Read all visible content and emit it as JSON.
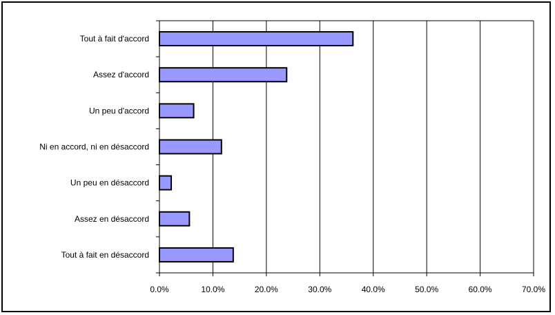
{
  "chart_data": {
    "type": "bar",
    "orientation": "horizontal",
    "categories": [
      "Tout à fait d'accord",
      "Assez d'accord",
      "Un peu d'accord",
      "Ni en accord, ni en désaccord",
      "Un peu en désaccord",
      "Assez en désaccord",
      "Tout à fait en désaccord"
    ],
    "values": [
      36.2,
      23.8,
      6.4,
      11.6,
      2.2,
      5.6,
      13.8
    ],
    "xlim": [
      0,
      70
    ],
    "x_ticks": [
      0,
      10,
      20,
      30,
      40,
      50,
      60,
      70
    ],
    "x_tick_labels": [
      "0.0%",
      "10.0%",
      "20.0%",
      "30.0%",
      "40.0%",
      "50.0%",
      "60.0%",
      "70.0%"
    ],
    "title": "",
    "xlabel": "",
    "ylabel": "",
    "grid": "vertical",
    "legend": "none",
    "colors": {
      "bar_fill": "#9999ff",
      "bar_stroke": "#000000",
      "gridline": "#000000",
      "frame": "#000000"
    }
  }
}
